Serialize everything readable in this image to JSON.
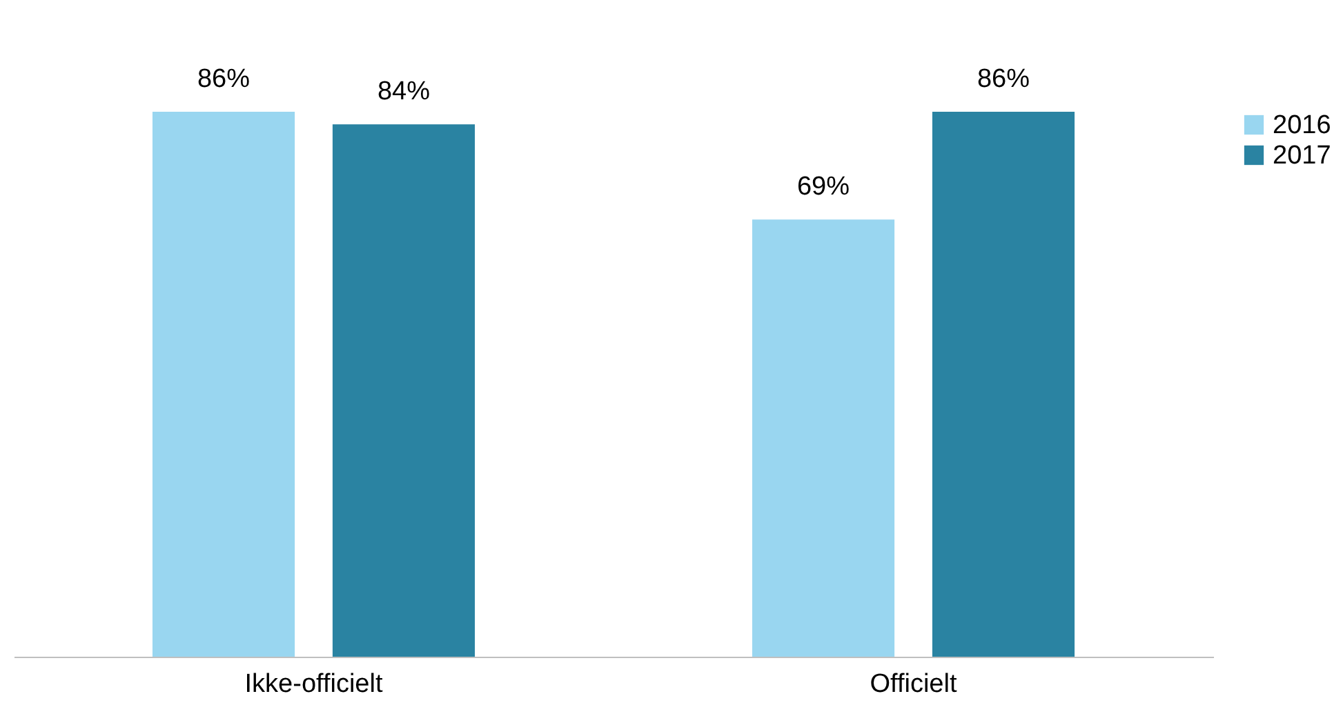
{
  "chart_data": {
    "type": "bar",
    "categories": [
      "Ikke-officielt",
      "Officielt"
    ],
    "series": [
      {
        "name": "2016",
        "color": "#99d6f0",
        "values": [
          86,
          69
        ],
        "value_labels": [
          "86%",
          "69%"
        ]
      },
      {
        "name": "2017",
        "color": "#2a83a2",
        "values": [
          84,
          86
        ],
        "value_labels": [
          "84%",
          "86%"
        ]
      }
    ],
    "legend": "right",
    "grid": false
  }
}
